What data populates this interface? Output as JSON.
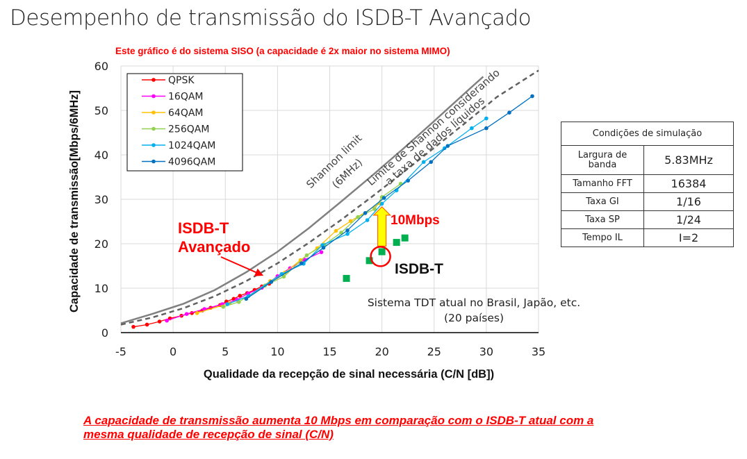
{
  "page": {
    "title": "Desempenho de transmissão do ISDB-T Avançado",
    "subtitle": "Este gráfico é do sistema SISO (a capacidade é 2x maior no sistema MIMO)",
    "footer_line1": "A capacidade de transmissão aumenta 10 Mbps em comparação com o ISDB-T atual com a",
    "footer_line2": "mesma qualidade de recepção de sinal (C/N)"
  },
  "annotations": {
    "shannon_limit_line1": "Shannon limit",
    "shannon_limit_line2": "(6MHz)",
    "net_shannon_line1": "Limite de Shannon considerando",
    "net_shannon_line2": "a taxa de dados líquidos",
    "advanced_line1": "ISDB-T",
    "advanced_line2": "Avançado",
    "gain_label": "10Mbps",
    "isdbt_label": "ISDB-T",
    "current_system_line1": "Sistema TDT atual no Brasil, Japão, etc.",
    "current_system_line2": "(20 países)"
  },
  "sim_table": {
    "header": "Condições de simulação",
    "rows": [
      {
        "label": "Largura de banda",
        "label_l1": "Largura de",
        "label_l2": "banda",
        "value": "5.83MHz"
      },
      {
        "label": "Tamanho FFT",
        "value": "16384"
      },
      {
        "label": "Taxa GI",
        "value": "1/16"
      },
      {
        "label": "Taxa SP",
        "value": "1/24"
      },
      {
        "label": "Tempo IL",
        "value": "I=2"
      }
    ]
  },
  "chart_data": {
    "type": "line",
    "title": "",
    "xlabel": "Qualidade da recepção de sinal necessária (C/N [dB])",
    "ylabel": "Capacidade de transmissão[Mbps/6MHz]",
    "xlim": [
      -5,
      35
    ],
    "ylim": [
      0,
      60
    ],
    "xticks": [
      "-5",
      "0",
      "5",
      "10",
      "15",
      "20",
      "25",
      "30",
      "35"
    ],
    "yticks": [
      "0",
      "10",
      "20",
      "30",
      "40",
      "50",
      "60"
    ],
    "grid": true,
    "legend_position": "upper-left",
    "series": [
      {
        "name": "QPSK",
        "color": "#ff0000",
        "x": [
          -3.8,
          -2.5,
          -1.3,
          -0.3,
          0.8,
          1.8,
          2.8,
          3.6,
          4.5,
          5.1,
          5.8,
          6.4,
          7.1,
          7.8,
          8.5,
          9.2
        ],
        "y": [
          1.3,
          1.8,
          2.5,
          3.2,
          3.8,
          4.4,
          5.0,
          5.6,
          6.2,
          7.0,
          7.6,
          8.3,
          8.9,
          9.6,
          10.4,
          11.0
        ]
      },
      {
        "name": "16QAM",
        "color": "#ff00ff",
        "x": [
          -0.6,
          1.3,
          3.0,
          4.7,
          6.1,
          7.2,
          8.5,
          10.0,
          11.2,
          12.6,
          14.2
        ],
        "y": [
          2.7,
          4.2,
          5.3,
          6.4,
          7.4,
          8.8,
          10.1,
          12.7,
          14.5,
          16.4,
          18.1
        ]
      },
      {
        "name": "64QAM",
        "color": "#ffc000",
        "x": [
          2.3,
          5.4,
          7.2,
          9.3,
          10.7,
          12.2,
          13.8,
          15.6,
          17.0,
          19.8
        ],
        "y": [
          4.4,
          6.6,
          8.2,
          11.6,
          13.5,
          16.3,
          19.0,
          22.9,
          25.1,
          29.1
        ]
      },
      {
        "name": "256QAM",
        "color": "#92d050",
        "x": [
          4.8,
          6.3,
          8.8,
          10.6,
          12.8,
          14.5,
          16.1,
          17.7,
          19.3,
          20.0,
          21.8
        ],
        "y": [
          5.8,
          6.9,
          10.6,
          12.6,
          17.4,
          19.8,
          22.5,
          26.0,
          27.8,
          30.5,
          33.5
        ]
      },
      {
        "name": "1024QAM",
        "color": "#00b0f0",
        "x": [
          5.2,
          7.2,
          10.4,
          12.5,
          14.3,
          16.7,
          18.6,
          20.0,
          21.4,
          24.0,
          26.0,
          28.6,
          30.0
        ],
        "y": [
          6.4,
          8.2,
          13.2,
          15.5,
          19.7,
          22.2,
          25.3,
          29.0,
          32.0,
          38.4,
          41.5,
          46.0,
          48.2
        ]
      },
      {
        "name": "4096QAM",
        "color": "#0070c0",
        "x": [
          7.0,
          9.4,
          12.3,
          14.4,
          16.7,
          18.4,
          20.2,
          22.5,
          24.7,
          26.3,
          30.0,
          32.2,
          34.4
        ],
        "y": [
          7.6,
          11.4,
          15.6,
          19.1,
          23.0,
          26.9,
          30.3,
          34.2,
          38.4,
          42.0,
          46.0,
          49.5,
          53.2
        ]
      },
      {
        "name": "Shannon limit (6MHz)",
        "color": "#808080",
        "style": "solid",
        "x": [
          -5,
          -2,
          1,
          4,
          7,
          10,
          13,
          16,
          19,
          22,
          25,
          28,
          29.7
        ],
        "y": [
          2.1,
          4.2,
          6.5,
          9.6,
          13.6,
          18.2,
          23.5,
          29.3,
          35.2,
          41.3,
          47.6,
          54.0,
          57.6
        ]
      },
      {
        "name": "Limite de Shannon considerando a taxa de dados líquidos",
        "color": "#606060",
        "style": "dashed",
        "x": [
          -5,
          -2,
          1,
          4,
          7,
          10,
          13,
          16,
          19,
          22,
          25,
          28,
          31,
          35
        ],
        "y": [
          1.8,
          3.4,
          5.5,
          8.2,
          11.6,
          15.6,
          20.2,
          25.2,
          30.5,
          36.0,
          41.6,
          47.2,
          53.0,
          59.0
        ]
      },
      {
        "name": "ISDB-T (atual)",
        "color": "#00b050",
        "style": "markers",
        "x": [
          16.6,
          18.8,
          20.0,
          21.4,
          22.2
        ],
        "y": [
          12.2,
          16.2,
          18.2,
          20.3,
          21.3
        ]
      }
    ],
    "annotations_data": {
      "gain_arrow": {
        "x": 20.0,
        "from_y": 18.2,
        "to_y": 28.3,
        "label": "10Mbps"
      },
      "highlight_circle": {
        "x": 20.0,
        "y": 17.6
      }
    }
  }
}
